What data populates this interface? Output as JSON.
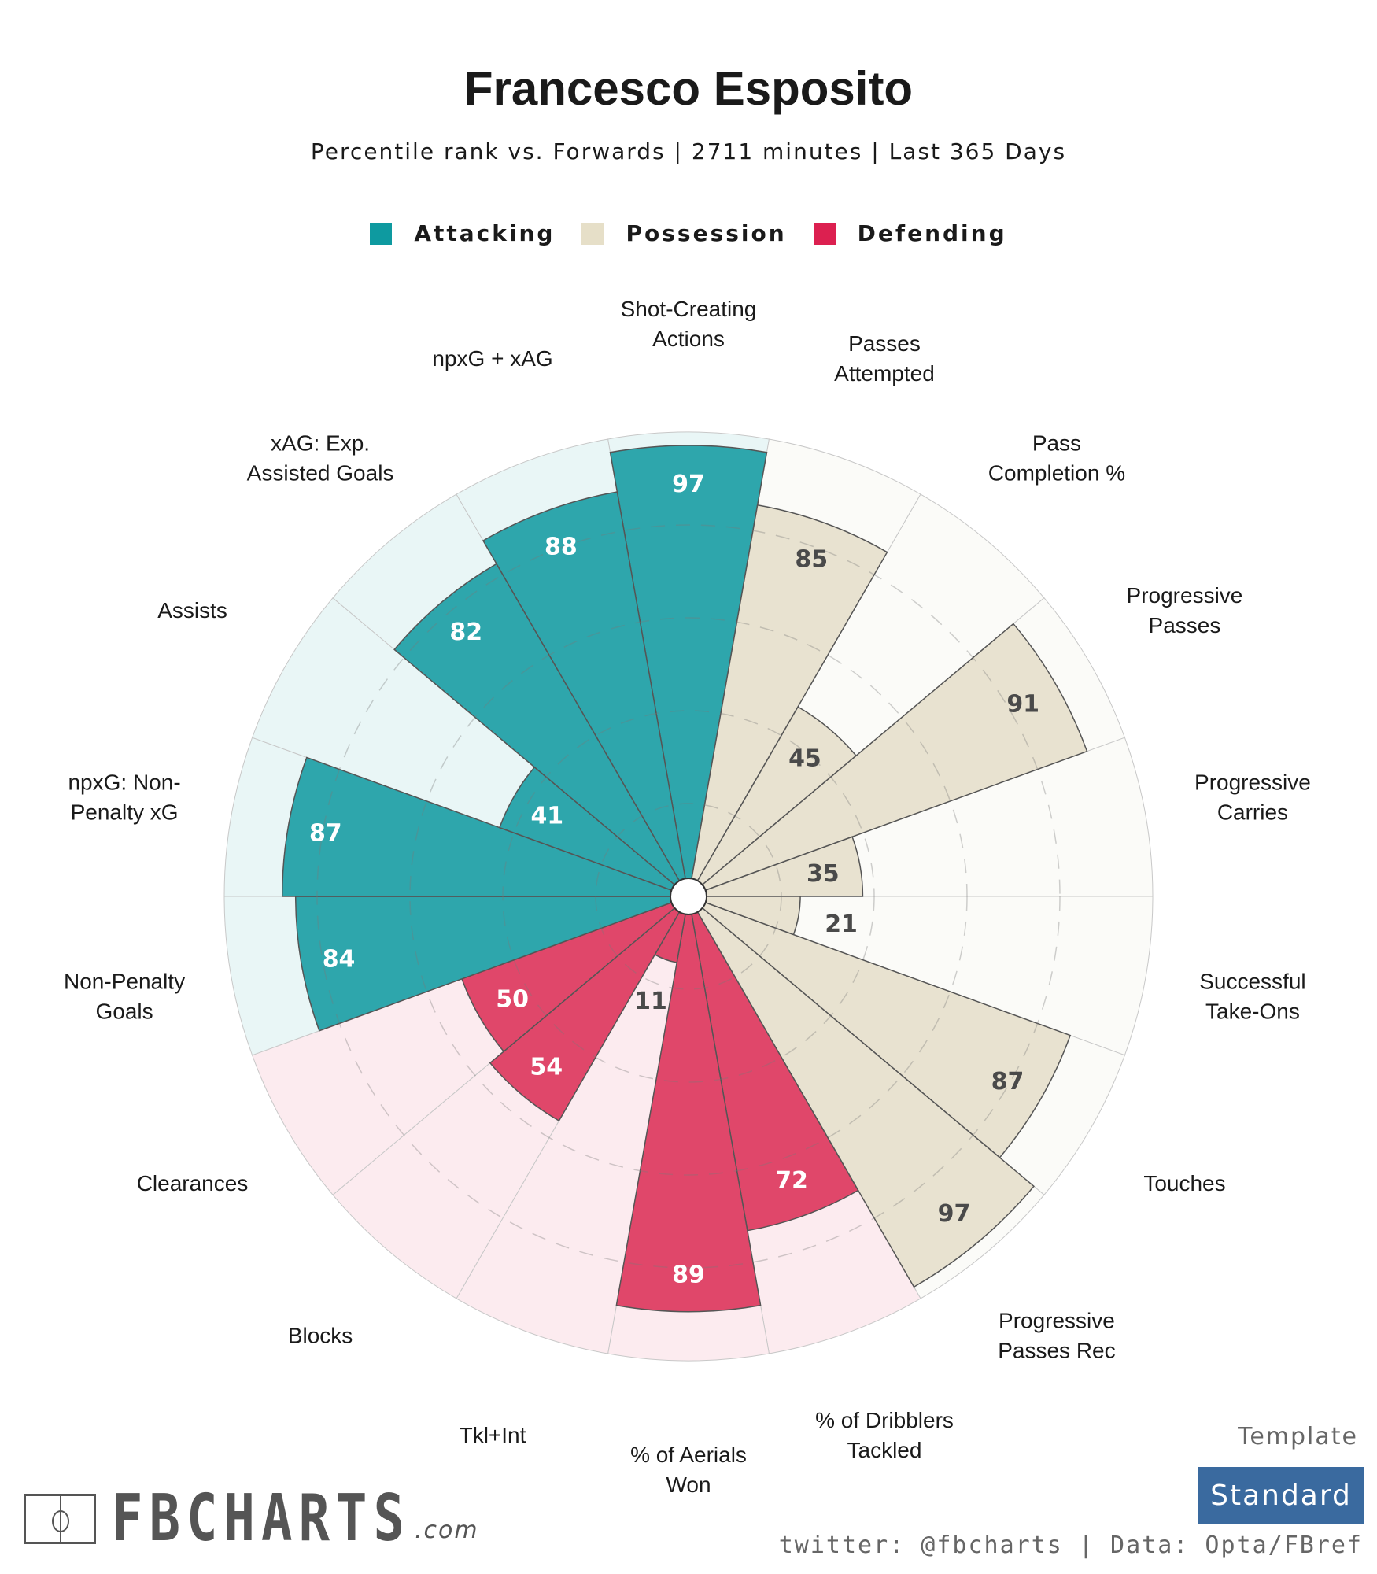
{
  "header": {
    "title": "Francesco Esposito",
    "subtitle": "Percentile rank vs. Forwards | 2711 minutes | Last 365 Days"
  },
  "legend": [
    {
      "label": "Attacking",
      "color": "#0e9aa0"
    },
    {
      "label": "Possession",
      "color": "#e6dfc8"
    },
    {
      "label": "Defending",
      "color": "#dc2050"
    }
  ],
  "chart_data": {
    "type": "polar-bar",
    "scale": [
      0,
      100
    ],
    "colors": {
      "Attacking": {
        "bar": "#2ea6ac",
        "bg": "#e9f6f6",
        "text": "#ffffff"
      },
      "Possession": {
        "bar": "#e8e2d0",
        "bg": "#fbfbf8",
        "text": "#4a4a4a"
      },
      "Defending": {
        "bar": "#e0476a",
        "bg": "#fcebef",
        "text": "#ffffff"
      }
    },
    "metrics": [
      {
        "label_lines": [
          "Shot-Creating",
          "Actions"
        ],
        "value": 97,
        "category": "Attacking"
      },
      {
        "label_lines": [
          "Passes",
          "Attempted"
        ],
        "value": 85,
        "category": "Possession"
      },
      {
        "label_lines": [
          "Pass",
          "Completion %"
        ],
        "value": 45,
        "category": "Possession"
      },
      {
        "label_lines": [
          "Progressive",
          "Passes"
        ],
        "value": 91,
        "category": "Possession"
      },
      {
        "label_lines": [
          "Progressive",
          "Carries"
        ],
        "value": 35,
        "category": "Possession"
      },
      {
        "label_lines": [
          "Successful",
          "Take-Ons"
        ],
        "value": 21,
        "category": "Possession"
      },
      {
        "label_lines": [
          "Touches"
        ],
        "value": 87,
        "category": "Possession"
      },
      {
        "label_lines": [
          "Progressive",
          "Passes Rec"
        ],
        "value": 97,
        "category": "Possession"
      },
      {
        "label_lines": [
          "% of Dribblers",
          "Tackled"
        ],
        "value": 72,
        "category": "Defending"
      },
      {
        "label_lines": [
          "% of Aerials",
          "Won"
        ],
        "value": 89,
        "category": "Defending"
      },
      {
        "label_lines": [
          "Tkl+Int"
        ],
        "value": 11,
        "category": "Defending"
      },
      {
        "label_lines": [
          "Blocks"
        ],
        "value": 54,
        "category": "Defending"
      },
      {
        "label_lines": [
          "Clearances"
        ],
        "value": 50,
        "category": "Defending"
      },
      {
        "label_lines": [
          "Non-Penalty",
          "Goals"
        ],
        "value": 84,
        "category": "Attacking"
      },
      {
        "label_lines": [
          "npxG: Non-",
          "Penalty xG"
        ],
        "value": 87,
        "category": "Attacking"
      },
      {
        "label_lines": [
          "Assists"
        ],
        "value": 41,
        "category": "Attacking"
      },
      {
        "label_lines": [
          "xAG: Exp.",
          "Assisted Goals"
        ],
        "value": 82,
        "category": "Attacking"
      },
      {
        "label_lines": [
          "npxG + xAG"
        ],
        "value": 88,
        "category": "Attacking"
      }
    ],
    "gridlines": [
      20,
      40,
      60,
      80
    ]
  },
  "footer": {
    "brand": "FBCHARTS",
    "brand_suffix": ".com",
    "template_label": "Template",
    "template_value": "Standard",
    "credits": "twitter: @fbcharts | Data: Opta/FBref"
  }
}
